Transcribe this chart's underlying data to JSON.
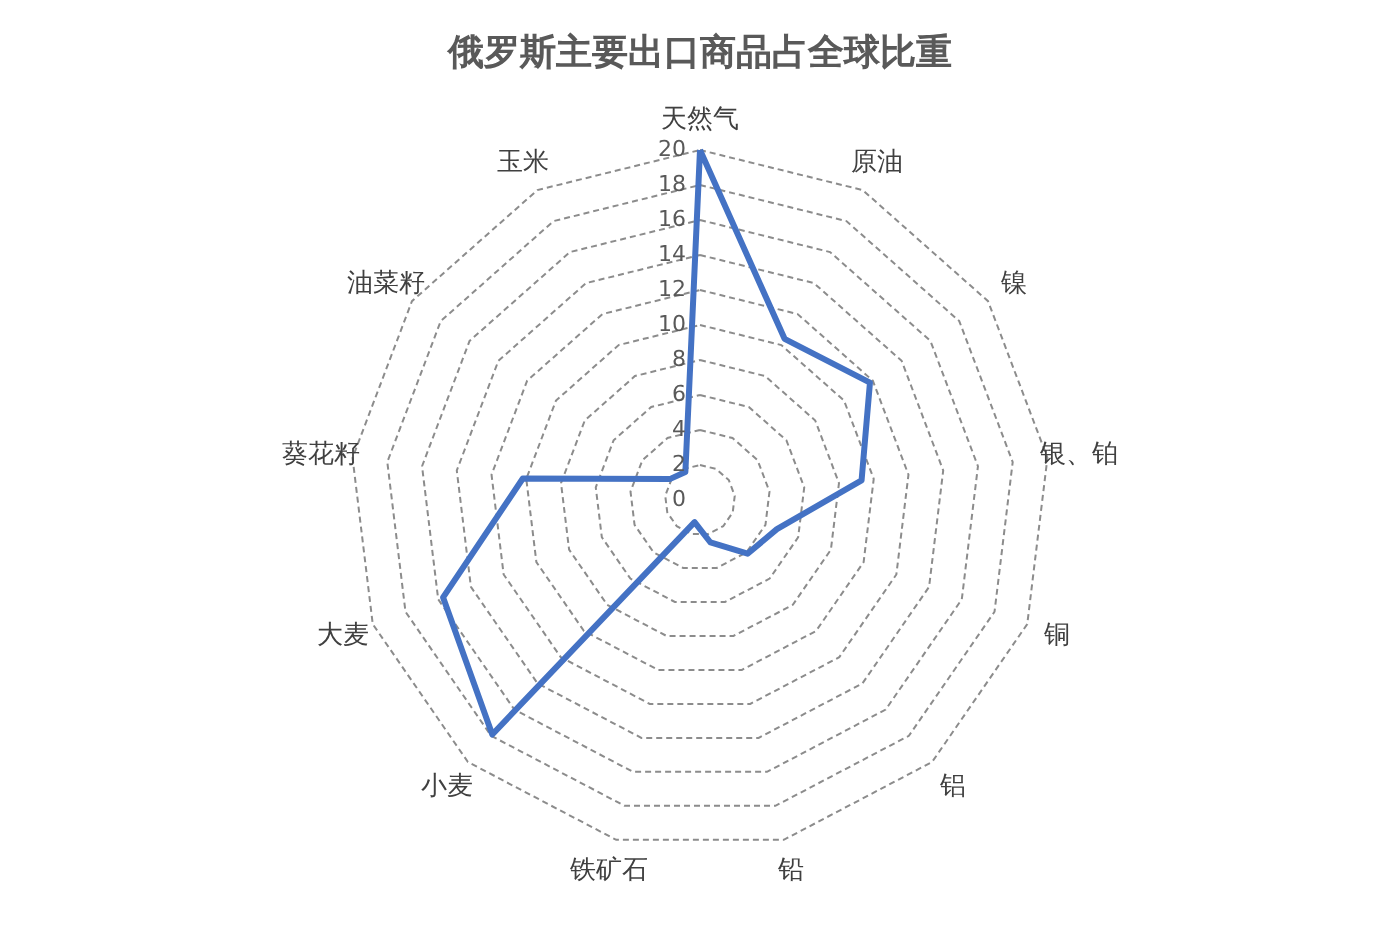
{
  "chart_data": {
    "type": "radar",
    "title": "俄罗斯主要出口商品占全球比重",
    "categories": [
      "天然气",
      "原油",
      "镍",
      "银、铂",
      "铜",
      "铝",
      "铅",
      "铁矿石",
      "小麦",
      "大麦",
      "葵花籽",
      "油菜籽",
      "玉米"
    ],
    "series": [
      {
        "color": "#4472c4",
        "values": [
          20,
          10.4,
          11.8,
          9.3,
          4.7,
          4.1,
          2.5,
          1.3,
          17.9,
          15.7,
          10.2,
          2.1,
          1.8
        ]
      }
    ],
    "ylim": [
      0,
      20
    ],
    "yticks": [
      0,
      2,
      4,
      6,
      8,
      10,
      12,
      14,
      16,
      18,
      20
    ],
    "grid": true,
    "marker": "none",
    "line_style": "solid"
  }
}
